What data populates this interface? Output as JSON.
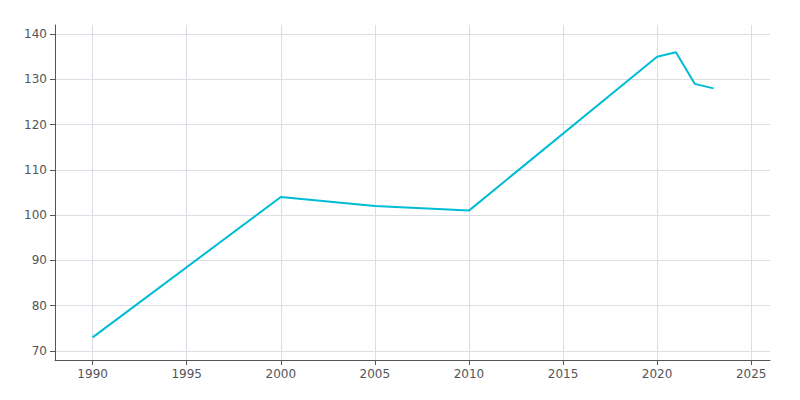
{
  "chart_data": {
    "type": "line",
    "x": [
      1990,
      2000,
      2005,
      2010,
      2020,
      2021,
      2022,
      2023
    ],
    "values": [
      73,
      104,
      102,
      101,
      135,
      136,
      129,
      128
    ],
    "color": "#00BCD4",
    "xlim": [
      1988,
      2026
    ],
    "xticks": [
      1990,
      1995,
      2000,
      2005,
      2010,
      2015,
      2020,
      2025
    ],
    "ylim": [
      68,
      142
    ],
    "yticks": [
      70,
      80,
      90,
      100,
      110,
      120,
      130,
      140
    ],
    "grid": true
  }
}
